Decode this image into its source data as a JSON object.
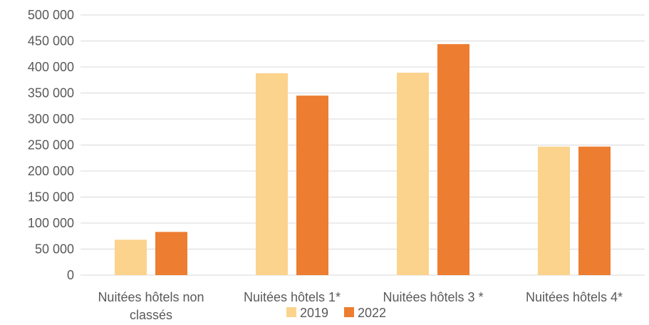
{
  "chart_data": {
    "type": "bar",
    "title": "",
    "xlabel": "",
    "ylabel": "",
    "categories": [
      [
        "Nuitées hôtels non",
        "classés"
      ],
      [
        "Nuitées hôtels 1*"
      ],
      [
        "Nuitées hôtels 3 *"
      ],
      [
        "Nuitées hôtels 4*"
      ]
    ],
    "series": [
      {
        "name": "2019",
        "color": "#FBD38D",
        "values": [
          68000,
          388000,
          389000,
          247000
        ]
      },
      {
        "name": "2022",
        "color": "#ED7D31",
        "values": [
          83000,
          345000,
          444000,
          247000
        ]
      }
    ],
    "ylim": [
      0,
      500000
    ],
    "yticks": [
      0,
      50000,
      100000,
      150000,
      200000,
      250000,
      300000,
      350000,
      400000,
      450000,
      500000
    ],
    "ytick_labels": [
      "0",
      "50 000",
      "100 000",
      "150 000",
      "200 000",
      "250 000",
      "300 000",
      "350 000",
      "400 000",
      "450 000",
      "500 000"
    ],
    "grid": true,
    "legend": "bottom"
  }
}
